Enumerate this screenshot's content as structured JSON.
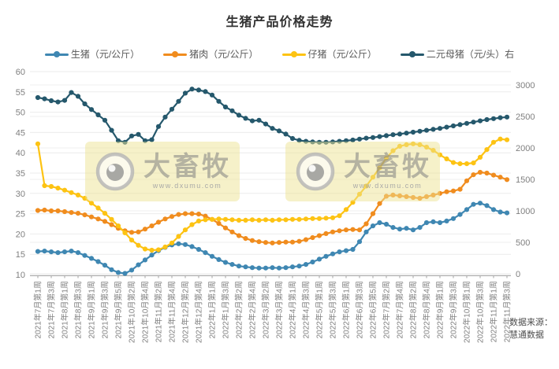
{
  "title": "生猪产品价格走势",
  "source": {
    "line1": "数据来源：",
    "line2": "慧通数据"
  },
  "watermark": {
    "brand": "大畜牧",
    "url": "www.dxumu.com"
  },
  "chart_data": {
    "type": "line",
    "title": "生猪产品价格走势",
    "legend_position": "top",
    "grid": true,
    "label_every_n_points": 2,
    "x_labels": [
      "2021年7月第1周",
      "2021年7月第3周",
      "2021年8月第1周",
      "2021年8月第3周",
      "2021年9月第1周",
      "2021年9月第3周",
      "2021年9月第5周",
      "2021年10月第2周",
      "2021年10月第4周",
      "2021年11月第2周",
      "2021年11月第4周",
      "2021年12月第2周",
      "2021年12月第4周",
      "2022年1月第1周",
      "2022年1月第3周",
      "2022年2月第2周",
      "2022年2月第4周",
      "2022年3月第2周",
      "2022年3月第4周",
      "2022年4月第1周",
      "2022年4月第3周",
      "2022年5月第1周",
      "2022年5月第3周",
      "2022年6月第1周",
      "2022年6月第3周",
      "2022年6月第5周",
      "2022年7月第2周",
      "2022年7月第4周",
      "2022年8月第2周",
      "2022年8月第4周",
      "2022年9月第1周",
      "2022年9月第3周",
      "2022年10月第1周",
      "2022年10月第3周",
      "2022年11月第1周",
      "2022年11月第3周"
    ],
    "left_axis": {
      "ticks": [
        10,
        15,
        20,
        25,
        30,
        35,
        40,
        45,
        50,
        55,
        60
      ],
      "range": [
        10,
        60
      ]
    },
    "right_axis": {
      "ticks": [
        0,
        500,
        1000,
        1500,
        2000,
        2500,
        3000
      ],
      "range": [
        0,
        3000
      ]
    },
    "series": [
      {
        "name": "生猪（元/公斤）",
        "axis": "left",
        "color": "#3f87b2",
        "values": [
          15.7,
          15.8,
          15.6,
          15.4,
          15.6,
          15.8,
          15.4,
          14.7,
          14.0,
          13.2,
          12.3,
          11.2,
          10.5,
          10.3,
          11.1,
          12.4,
          13.6,
          14.8,
          15.9,
          16.7,
          17.3,
          17.6,
          17.4,
          16.9,
          16.2,
          15.4,
          14.5,
          13.7,
          13.0,
          12.5,
          12.1,
          11.9,
          11.7,
          11.6,
          11.6,
          11.7,
          11.6,
          11.7,
          11.9,
          12.1,
          12.5,
          13.1,
          13.8,
          14.5,
          15.1,
          15.6,
          15.9,
          16.2,
          18.1,
          20.5,
          22.0,
          22.8,
          22.4,
          21.6,
          21.2,
          21.4,
          21.0,
          21.6,
          22.8,
          23.0,
          22.8,
          23.2,
          23.8,
          24.8,
          26.0,
          27.3,
          27.6,
          27.0,
          26.0,
          25.4,
          25.2
        ]
      },
      {
        "name": "猪肉（元/公斤）",
        "axis": "left",
        "color": "#f08c1e",
        "values": [
          25.8,
          25.9,
          25.7,
          25.7,
          25.5,
          25.3,
          25.1,
          24.7,
          24.2,
          23.7,
          23.1,
          22.3,
          21.4,
          20.8,
          20.4,
          20.5,
          21.2,
          22.0,
          22.9,
          23.7,
          24.3,
          24.8,
          25.0,
          25.0,
          24.9,
          24.4,
          23.6,
          22.6,
          21.5,
          20.5,
          19.6,
          18.9,
          18.4,
          18.1,
          17.9,
          17.8,
          17.9,
          18.0,
          18.0,
          18.2,
          18.6,
          19.1,
          19.6,
          20.1,
          20.5,
          20.8,
          21.0,
          21.1,
          21.0,
          22.5,
          25.0,
          27.5,
          29.3,
          29.6,
          29.4,
          29.2,
          29.0,
          28.8,
          29.2,
          29.6,
          30.0,
          30.4,
          30.6,
          31.0,
          33.1,
          34.6,
          35.2,
          35.0,
          34.5,
          34.0,
          33.4
        ]
      },
      {
        "name": "仔猪（元/公斤）",
        "axis": "left",
        "color": "#fdc313",
        "values": [
          42.2,
          31.9,
          31.7,
          31.3,
          30.8,
          30.2,
          29.6,
          28.8,
          27.6,
          26.4,
          25.1,
          23.6,
          22.0,
          20.3,
          18.5,
          17.2,
          16.3,
          16.0,
          16.1,
          16.8,
          17.8,
          19.4,
          21.0,
          22.3,
          23.2,
          23.5,
          23.6,
          23.7,
          23.6,
          23.5,
          23.4,
          23.4,
          23.5,
          23.4,
          23.5,
          23.4,
          23.5,
          23.5,
          23.6,
          23.6,
          23.7,
          23.8,
          23.8,
          23.9,
          24.0,
          24.5,
          26.0,
          27.8,
          29.8,
          31.8,
          34.0,
          36.3,
          38.7,
          40.5,
          41.6,
          42.0,
          42.2,
          42.0,
          41.4,
          40.6,
          39.5,
          38.5,
          37.6,
          37.3,
          37.3,
          37.5,
          38.9,
          40.8,
          42.6,
          43.4,
          43.2
        ]
      },
      {
        "name": "二元母猪（元/头）右",
        "axis": "right",
        "color": "#25586c",
        "values": [
          2800,
          2780,
          2750,
          2730,
          2755,
          2880,
          2820,
          2700,
          2610,
          2525,
          2440,
          2280,
          2115,
          2090,
          2190,
          2215,
          2115,
          2130,
          2340,
          2490,
          2615,
          2740,
          2870,
          2935,
          2920,
          2895,
          2840,
          2740,
          2650,
          2590,
          2520,
          2470,
          2430,
          2440,
          2380,
          2310,
          2270,
          2220,
          2150,
          2120,
          2105,
          2095,
          2090,
          2090,
          2095,
          2105,
          2115,
          2125,
          2140,
          2155,
          2165,
          2180,
          2195,
          2210,
          2220,
          2235,
          2250,
          2265,
          2280,
          2295,
          2310,
          2330,
          2350,
          2370,
          2390,
          2410,
          2430,
          2450,
          2465,
          2480,
          2490
        ]
      }
    ]
  }
}
